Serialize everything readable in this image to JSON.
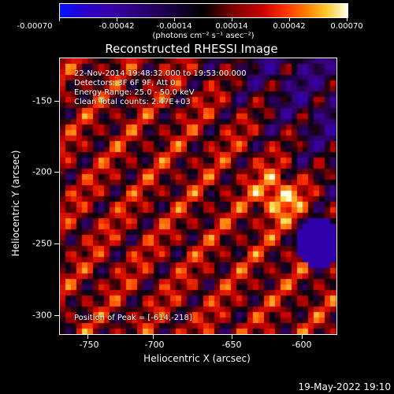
{
  "colorbar": {
    "ticks": [
      "-0.00070",
      "-0.00042",
      "-0.00014",
      "0.00014",
      "0.00042",
      "0.00070"
    ],
    "units_label": "(photons cm⁻² s⁻¹ asec⁻²)"
  },
  "plot": {
    "title": "Reconstructed RHESSI Image",
    "info": {
      "time": "22-Nov-2014 19:48:32.000 to 19:53:00.000",
      "detectors": "Detectors: 3F 6F 9F, Att 0",
      "energy": "Energy Range: 25.0 - 50.0 keV",
      "clean": "Clean    Total counts: 2.47E+03",
      "peak": "Position of Peak = [-614,-218]"
    },
    "xaxis": {
      "title": "Heliocentric X (arcsec)",
      "ticks": [
        "-750",
        "-700",
        "-650",
        "-600"
      ]
    },
    "yaxis": {
      "title": "Heliocentric Y (arcsec)",
      "ticks": [
        "-150",
        "-200",
        "-250",
        "-300"
      ]
    }
  },
  "footer": {
    "date": "19-May-2022 19:10"
  }
}
